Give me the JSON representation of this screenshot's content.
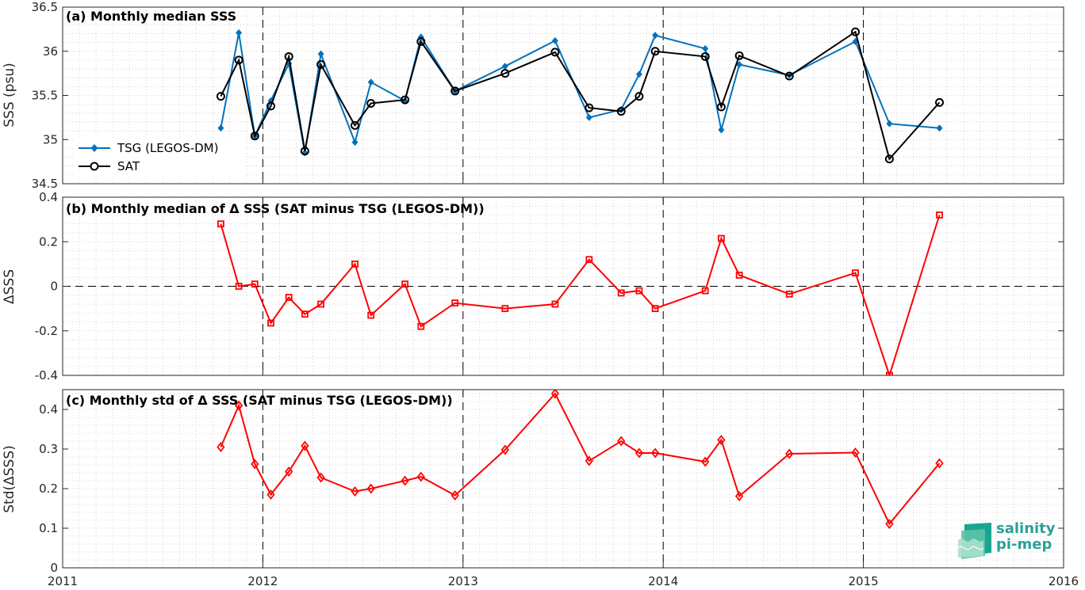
{
  "chart_data": [
    {
      "type": "line",
      "title": "(a) Monthly median SSS",
      "xlabel": "",
      "ylabel": "SSS (psu)",
      "xlim": [
        2011,
        2016
      ],
      "ylim": [
        34.5,
        36.5
      ],
      "yticks": [
        34.5,
        35,
        35.5,
        36,
        36.5
      ],
      "ytick_labels": [
        "34.5",
        "35",
        "35.5",
        "36",
        "36.5"
      ],
      "legend_position": "middle-left",
      "grid": true,
      "series": [
        {
          "name": "TSG (LEGOS-DM)",
          "color": "#0072bd",
          "marker": "diamond-filled",
          "x": [
            2011.79,
            2011.88,
            2011.96,
            2012.04,
            2012.13,
            2012.21,
            2012.29,
            2012.46,
            2012.54,
            2012.71,
            2012.79,
            2012.96,
            2013.21,
            2013.46,
            2013.63,
            2013.79,
            2013.88,
            2013.96,
            2014.21,
            2014.29,
            2014.38,
            2014.63,
            2014.96,
            2015.13,
            2015.38
          ],
          "values": [
            35.13,
            36.21,
            35.04,
            35.44,
            35.86,
            34.85,
            35.97,
            34.97,
            35.65,
            35.44,
            36.16,
            35.55,
            35.83,
            36.12,
            35.25,
            35.34,
            35.74,
            36.18,
            36.03,
            35.11,
            35.85,
            35.73,
            36.11,
            35.18,
            35.13
          ]
        },
        {
          "name": "SAT",
          "color": "#000000",
          "marker": "circle-open",
          "x": [
            2011.79,
            2011.88,
            2011.96,
            2012.04,
            2012.13,
            2012.21,
            2012.29,
            2012.46,
            2012.54,
            2012.71,
            2012.79,
            2012.96,
            2013.21,
            2013.46,
            2013.63,
            2013.79,
            2013.88,
            2013.96,
            2014.21,
            2014.29,
            2014.38,
            2014.63,
            2014.96,
            2015.13,
            2015.38
          ],
          "values": [
            35.49,
            35.9,
            35.04,
            35.38,
            35.94,
            34.87,
            35.85,
            35.16,
            35.41,
            35.45,
            36.11,
            35.55,
            35.75,
            35.99,
            35.36,
            35.32,
            35.49,
            36.0,
            35.94,
            35.37,
            35.95,
            35.72,
            36.22,
            34.78,
            35.42
          ]
        }
      ]
    },
    {
      "type": "line",
      "title": "(b) Monthly median of Δ SSS (SAT minus TSG (LEGOS-DM))",
      "xlabel": "",
      "ylabel": "ΔSSS",
      "xlim": [
        2011,
        2016
      ],
      "ylim": [
        -0.4,
        0.4
      ],
      "yticks": [
        -0.4,
        -0.2,
        0,
        0.2,
        0.4
      ],
      "ytick_labels": [
        "-0.4",
        "-0.2",
        "0",
        "0.2",
        "0.4"
      ],
      "reference_line": 0,
      "grid": true,
      "series": [
        {
          "color": "#ff0000",
          "marker": "square-open",
          "x": [
            2011.79,
            2011.88,
            2011.96,
            2012.04,
            2012.13,
            2012.21,
            2012.29,
            2012.46,
            2012.54,
            2012.71,
            2012.79,
            2012.96,
            2013.21,
            2013.46,
            2013.63,
            2013.79,
            2013.88,
            2013.96,
            2014.21,
            2014.29,
            2014.38,
            2014.63,
            2014.96,
            2015.13,
            2015.38
          ],
          "values": [
            0.28,
            0.0,
            0.01,
            -0.165,
            -0.05,
            -0.125,
            -0.08,
            0.1,
            -0.13,
            0.01,
            -0.18,
            -0.075,
            -0.1,
            -0.08,
            0.12,
            -0.03,
            -0.02,
            -0.1,
            -0.02,
            0.215,
            0.05,
            -0.035,
            0.06,
            -0.4,
            0.32
          ]
        }
      ]
    },
    {
      "type": "line",
      "title": "(c) Monthly std of Δ SSS (SAT minus TSG (LEGOS-DM))",
      "xlabel": "",
      "ylabel": "Std(ΔSSS)",
      "xlim": [
        2011,
        2016
      ],
      "ylim": [
        0,
        0.45
      ],
      "yticks": [
        0,
        0.1,
        0.2,
        0.3,
        0.4
      ],
      "ytick_labels": [
        "0",
        "0.1",
        "0.2",
        "0.3",
        "0.4"
      ],
      "xticks": [
        2011,
        2012,
        2013,
        2014,
        2015,
        2016
      ],
      "xtick_labels": [
        "2011",
        "2012",
        "2013",
        "2014",
        "2015",
        "2016"
      ],
      "grid": true,
      "series": [
        {
          "color": "#ff0000",
          "marker": "diamond-open",
          "x": [
            2011.79,
            2011.88,
            2011.96,
            2012.04,
            2012.13,
            2012.21,
            2012.29,
            2012.46,
            2012.54,
            2012.71,
            2012.79,
            2012.96,
            2013.21,
            2013.46,
            2013.63,
            2013.79,
            2013.88,
            2013.96,
            2014.21,
            2014.29,
            2014.38,
            2014.63,
            2014.96,
            2015.13,
            2015.38
          ],
          "values": [
            0.305,
            0.41,
            0.262,
            0.185,
            0.243,
            0.308,
            0.228,
            0.193,
            0.2,
            0.22,
            0.23,
            0.183,
            0.298,
            0.44,
            0.27,
            0.32,
            0.29,
            0.29,
            0.268,
            0.323,
            0.181,
            0.288,
            0.291,
            0.111,
            0.264
          ]
        }
      ]
    }
  ],
  "logo": {
    "line1": "salinity",
    "line2": "pi-mep"
  }
}
